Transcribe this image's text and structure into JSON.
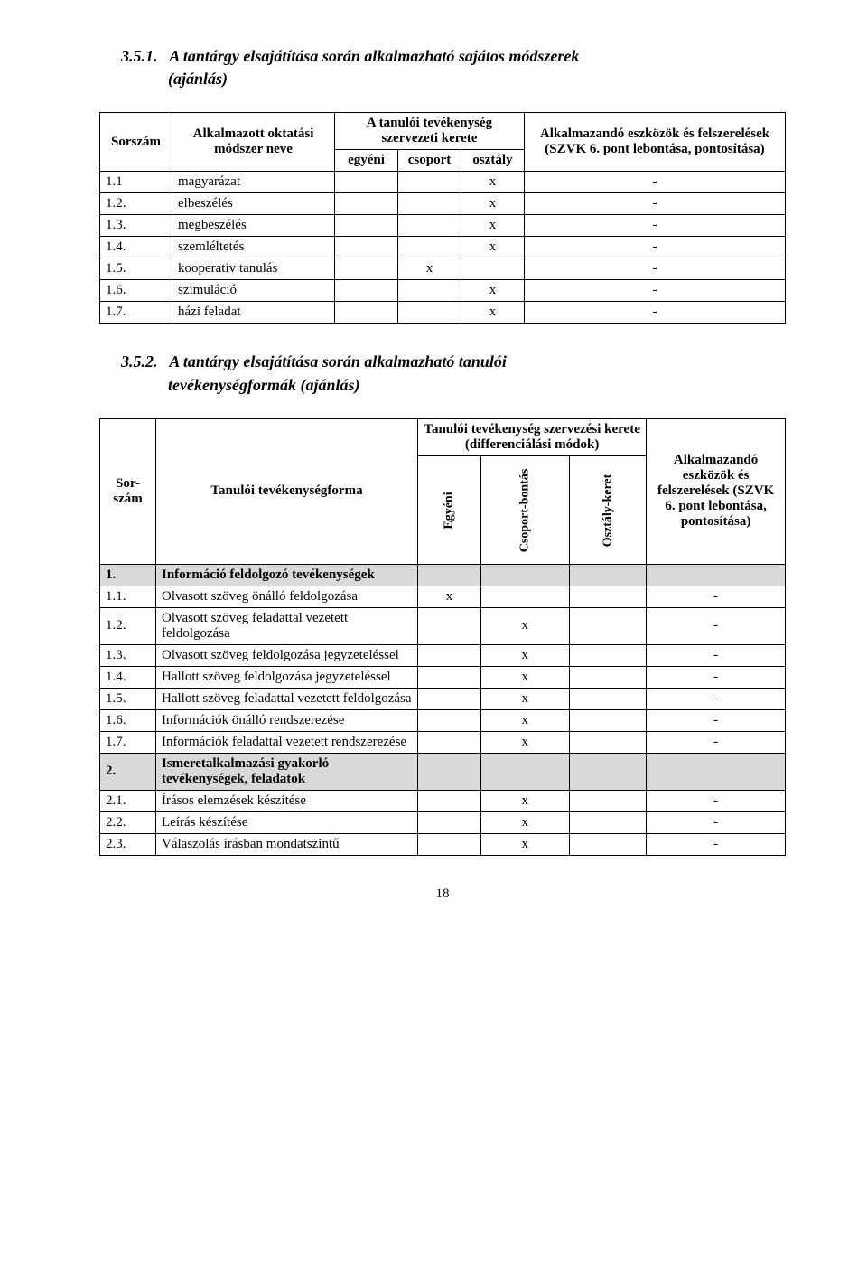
{
  "page_number": "18",
  "section1": {
    "number": "3.5.1.",
    "title_line1": "A tantárgy elsajátítása során alkalmazható sajátos módszerek",
    "title_line2": "(ajánlás)",
    "headers": {
      "sorszam": "Sorszám",
      "alkalmazott": "Alkalmazott oktatási módszer neve",
      "tevekenyseg": "A tanulói tevékenység szervezeti kerete",
      "egyeni": "egyéni",
      "csoport": "csoport",
      "osztaly": "osztály",
      "eszkozok": "Alkalmazandó eszközök és felszerelések (SZVK 6. pont lebontása, pontosítása)"
    },
    "rows": [
      {
        "num": "1.1",
        "name": "magyarázat",
        "egyeni": "",
        "csoport": "",
        "osztaly": "x",
        "last": "-"
      },
      {
        "num": "1.2.",
        "name": "elbeszélés",
        "egyeni": "",
        "csoport": "",
        "osztaly": "x",
        "last": "-"
      },
      {
        "num": "1.3.",
        "name": "megbeszélés",
        "egyeni": "",
        "csoport": "",
        "osztaly": "x",
        "last": "-"
      },
      {
        "num": "1.4.",
        "name": "szemléltetés",
        "egyeni": "",
        "csoport": "",
        "osztaly": "x",
        "last": "-"
      },
      {
        "num": "1.5.",
        "name": "kooperatív tanulás",
        "egyeni": "",
        "csoport": "x",
        "osztaly": "",
        "last": "-"
      },
      {
        "num": "1.6.",
        "name": "szimuláció",
        "egyeni": "",
        "csoport": "",
        "osztaly": "x",
        "last": "-"
      },
      {
        "num": "1.7.",
        "name": "házi feladat",
        "egyeni": "",
        "csoport": "",
        "osztaly": "x",
        "last": "-"
      }
    ]
  },
  "section2": {
    "number": "3.5.2.",
    "title_line1": "A tantárgy elsajátítása során alkalmazható tanulói",
    "title_line2": "tevékenységformák (ajánlás)",
    "headers": {
      "sorszam": "Sor-szám",
      "forma": "Tanulói tevékenységforma",
      "kerete": "Tanulói tevékenység szervezési kerete (differenciálási módok)",
      "egyeni": "Egyéni",
      "csoport": "Csoport-bontás",
      "osztaly": "Osztály-keret",
      "eszkozok": "Alkalmazandó eszközök és felszerelések (SZVK 6. pont lebontása, pontosítása)"
    },
    "rows": [
      {
        "num": "1.",
        "name": "Információ feldolgozó tevékenységek",
        "shaded": true
      },
      {
        "num": "1.1.",
        "name": "Olvasott szöveg önálló feldolgozása",
        "egyeni": "x",
        "csoport": "",
        "osztaly": "",
        "last": "-"
      },
      {
        "num": "1.2.",
        "name": "Olvasott szöveg feladattal vezetett feldolgozása",
        "egyeni": "",
        "csoport": "x",
        "osztaly": "",
        "last": "-"
      },
      {
        "num": "1.3.",
        "name": "Olvasott szöveg feldolgozása jegyzeteléssel",
        "egyeni": "",
        "csoport": "x",
        "osztaly": "",
        "last": "-"
      },
      {
        "num": "1.4.",
        "name": "Hallott szöveg feldolgozása jegyzeteléssel",
        "egyeni": "",
        "csoport": "x",
        "osztaly": "",
        "last": "-"
      },
      {
        "num": "1.5.",
        "name": "Hallott szöveg feladattal vezetett feldolgozása",
        "egyeni": "",
        "csoport": "x",
        "osztaly": "",
        "last": "-"
      },
      {
        "num": "1.6.",
        "name": "Információk önálló rendszerezése",
        "egyeni": "",
        "csoport": "x",
        "osztaly": "",
        "last": "-"
      },
      {
        "num": "1.7.",
        "name": "Információk feladattal vezetett rendszerezése",
        "egyeni": "",
        "csoport": "x",
        "osztaly": "",
        "last": "-"
      },
      {
        "num": "2.",
        "name": "Ismeretalkalmazási gyakorló tevékenységek, feladatok",
        "shaded": true
      },
      {
        "num": "2.1.",
        "name": "Írásos elemzések készítése",
        "egyeni": "",
        "csoport": "x",
        "osztaly": "",
        "last": "-"
      },
      {
        "num": "2.2.",
        "name": "Leírás készítése",
        "egyeni": "",
        "csoport": "x",
        "osztaly": "",
        "last": "-"
      },
      {
        "num": "2.3.",
        "name": "Válaszolás írásban mondatszintű",
        "egyeni": "",
        "csoport": "x",
        "osztaly": "",
        "last": "-"
      }
    ]
  }
}
